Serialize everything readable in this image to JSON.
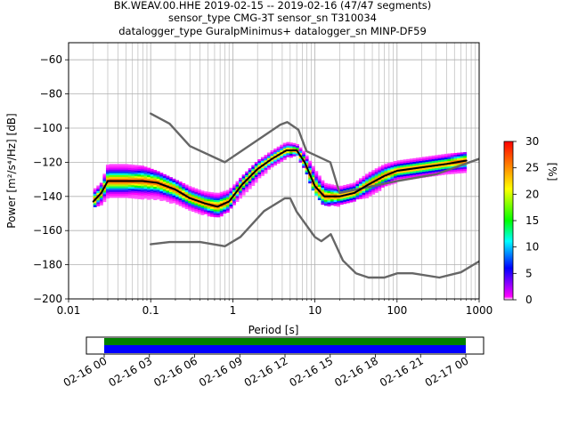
{
  "chart_data": {
    "type": "heatmap",
    "title_lines": [
      "BK.WEAV.00.HHE   2019-02-15 -- 2019-02-16  (47/47 segments)",
      "sensor_type CMG-3T sensor_sn T310034",
      "datalogger_type GuralpMinimus+ datalogger_sn MINP-DF59"
    ],
    "xlabel": "Period [s]",
    "ylabel": "Power [m²/s⁴/Hz] [dB]",
    "xscale": "log",
    "xlim": [
      0.01,
      1000
    ],
    "ylim": [
      -200,
      -50
    ],
    "xticks": [
      {
        "v": 0.01,
        "label": "0.01"
      },
      {
        "v": 0.1,
        "label": "0.1"
      },
      {
        "v": 1,
        "label": "1"
      },
      {
        "v": 10,
        "label": "10"
      },
      {
        "v": 100,
        "label": "100"
      },
      {
        "v": 1000,
        "label": "1000"
      }
    ],
    "yticks": [
      {
        "v": -60,
        "label": "−60"
      },
      {
        "v": -80,
        "label": "−80"
      },
      {
        "v": -100,
        "label": "−100"
      },
      {
        "v": -120,
        "label": "−120"
      },
      {
        "v": -140,
        "label": "−140"
      },
      {
        "v": -160,
        "label": "−160"
      },
      {
        "v": -180,
        "label": "−180"
      },
      {
        "v": -200,
        "label": "−200"
      }
    ],
    "grid": true,
    "colorbar": {
      "label": "[%]",
      "min": 0,
      "max": 30,
      "ticks": [
        {
          "v": 0,
          "label": "0"
        },
        {
          "v": 5,
          "label": "5"
        },
        {
          "v": 10,
          "label": "10"
        },
        {
          "v": 15,
          "label": "15"
        },
        {
          "v": 20,
          "label": "20"
        },
        {
          "v": 25,
          "label": "25"
        },
        {
          "v": 30,
          "label": "30"
        }
      ],
      "colors": [
        "#ffffff",
        "#ff00ff",
        "#0000ff",
        "#00ffff",
        "#00ff00",
        "#ffff00",
        "#ff0000"
      ]
    },
    "series": [
      {
        "role": "nhnm",
        "color": "#666666",
        "x": [
          0.1,
          0.17,
          0.3,
          0.8,
          3.8,
          4.6,
          6.3,
          7.9,
          15.4,
          20,
          100,
          300,
          1000
        ],
        "y": [
          -91.5,
          -97.4,
          -110.5,
          -120,
          -98,
          -96.5,
          -101,
          -113.5,
          -120,
          -138,
          -131,
          -127,
          -118
        ]
      },
      {
        "role": "nlnm",
        "color": "#666666",
        "x": [
          0.1,
          0.17,
          0.4,
          0.8,
          1.24,
          2.4,
          4.3,
          5,
          6,
          10,
          12,
          15.6,
          21.9,
          31.6,
          45,
          70,
          101,
          154,
          328,
          600,
          1000
        ],
        "y": [
          -168,
          -166.7,
          -166.7,
          -169.2,
          -163.7,
          -148.6,
          -141.1,
          -141.1,
          -149,
          -163.8,
          -166.2,
          -162.1,
          -177.5,
          -185,
          -187.5,
          -187.5,
          -185,
          -185,
          -187.5,
          -184.4,
          -178
        ]
      },
      {
        "role": "mode",
        "color": "#000000",
        "x": [
          0.02,
          0.025,
          0.03,
          0.05,
          0.08,
          0.12,
          0.2,
          0.3,
          0.45,
          0.65,
          0.9,
          1.3,
          2,
          3,
          4.5,
          6,
          7.5,
          10,
          13,
          20,
          30,
          45,
          70,
          100,
          200,
          400,
          700
        ],
        "y": [
          -143,
          -138,
          -131,
          -131,
          -131,
          -132,
          -136,
          -141,
          -144,
          -146,
          -143,
          -133,
          -124,
          -118,
          -113,
          -113,
          -120,
          -134,
          -140,
          -140,
          -138,
          -133,
          -128,
          -125,
          -123,
          -121,
          -119
        ]
      }
    ],
    "distribution_bands": {
      "x": [
        0.02,
        0.025,
        0.03,
        0.05,
        0.08,
        0.12,
        0.2,
        0.3,
        0.45,
        0.65,
        0.9,
        1.3,
        2,
        3,
        4.5,
        6,
        7.5,
        10,
        13,
        20,
        30,
        45,
        70,
        100,
        200,
        400,
        700
      ],
      "upper": [
        -136,
        -132,
        -121,
        -121,
        -122,
        -125,
        -130,
        -134,
        -137,
        -138,
        -136,
        -128,
        -119,
        -113,
        -108,
        -109,
        -114,
        -124,
        -132,
        -134,
        -132,
        -126,
        -121,
        -119,
        -117,
        -115,
        -114
      ],
      "lower": [
        -146,
        -145,
        -140,
        -140,
        -141,
        -141,
        -144,
        -148,
        -150,
        -152,
        -148,
        -139,
        -130,
        -122,
        -117,
        -115,
        -124,
        -138,
        -145,
        -145,
        -142,
        -140,
        -134,
        -131,
        -129,
        -127,
        -126
      ]
    },
    "time_axis": {
      "ticks": [
        "02-16 00",
        "02-16 03",
        "02-16 06",
        "02-16 09",
        "02-16 12",
        "02-16 15",
        "02-16 18",
        "02-16 21",
        "02-17 00"
      ],
      "coverage_colors": [
        "#008000",
        "#0000ff"
      ]
    }
  }
}
